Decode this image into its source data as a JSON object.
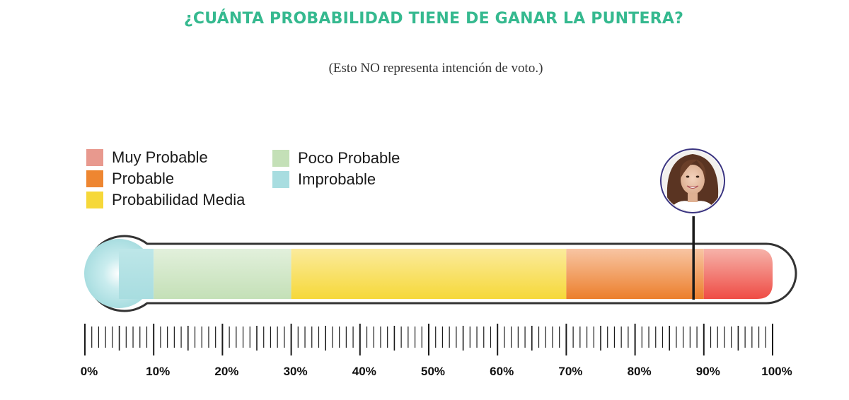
{
  "title": "¿CUÁNTA PROBABILIDAD TIENE DE GANAR LA PUNTERA?",
  "subtitle": "(Esto NO representa intención de voto.)",
  "colors": {
    "title": "#35b98f",
    "muy_probable": "#e8998e",
    "probable": "#ee8631",
    "media": "#f6d839",
    "poco": "#c4e0b7",
    "improbable": "#a8dde0",
    "outline": "#333333"
  },
  "legend": [
    {
      "label": "Muy Probable",
      "color": "#e8998e"
    },
    {
      "label": "Probable",
      "color": "#ee8631"
    },
    {
      "label": "Probabilidad Media",
      "color": "#f6d839"
    },
    {
      "label": "Poco Probable",
      "color": "#c4e0b7"
    },
    {
      "label": "Improbable",
      "color": "#a8dde0"
    }
  ],
  "chart_data": {
    "type": "bar",
    "title": "¿CUÁNTA PROBABILIDAD TIENE DE GANAR LA PUNTERA?",
    "subtitle": "(Esto NO representa intención de voto.)",
    "xlim": [
      0,
      100
    ],
    "x_unit": "%",
    "tick_labels": [
      "0%",
      "10%",
      "20%",
      "30%",
      "40%",
      "50%",
      "60%",
      "70%",
      "80%",
      "90%",
      "100%"
    ],
    "minor_tick_step": 1,
    "zones": [
      {
        "name": "Improbable",
        "from": 0,
        "to": 10,
        "color": "#a8dde0"
      },
      {
        "name": "Poco Probable",
        "from": 10,
        "to": 30,
        "color": "#c4e0b7"
      },
      {
        "name": "Probabilidad Media",
        "from": 30,
        "to": 70,
        "color": "#f6d839"
      },
      {
        "name": "Probable",
        "from": 70,
        "to": 90,
        "color": "#ee8631"
      },
      {
        "name": "Muy Probable",
        "from": 90,
        "to": 100,
        "color": "#e8998e"
      }
    ],
    "marker": {
      "value": 88.5,
      "icon": "candidate-avatar-icon"
    },
    "legend_position": "top-left",
    "grid": false
  }
}
